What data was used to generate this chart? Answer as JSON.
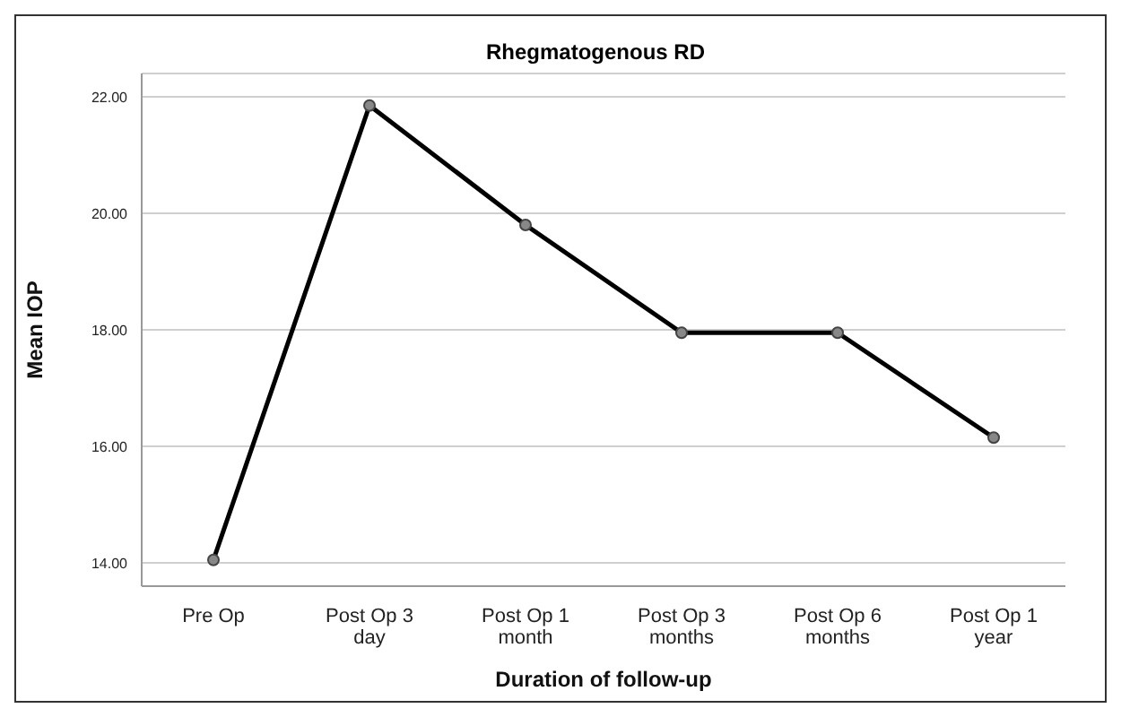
{
  "chart_data": {
    "type": "line",
    "title": "Rhegmatogenous RD",
    "xlabel": "Duration of follow-up",
    "ylabel": "Mean IOP",
    "categories": [
      "Pre Op",
      "Post Op 3 day",
      "Post Op 1 month",
      "Post Op 3 months",
      "Post Op 6 months",
      "Post Op 1 year"
    ],
    "series": [
      {
        "color": "#000000",
        "values": [
          14.05,
          21.85,
          19.8,
          17.95,
          17.95,
          16.15
        ]
      }
    ],
    "ylim": [
      13.6,
      22.4
    ],
    "yticks": [
      {
        "value": 14,
        "label": "14.00"
      },
      {
        "value": 16,
        "label": "16.00"
      },
      {
        "value": 18,
        "label": "18.00"
      },
      {
        "value": 20,
        "label": "20.00"
      },
      {
        "value": 22,
        "label": "22.00"
      }
    ],
    "grid": "y",
    "marker": "circle",
    "line_style": "solid",
    "legend": false
  }
}
